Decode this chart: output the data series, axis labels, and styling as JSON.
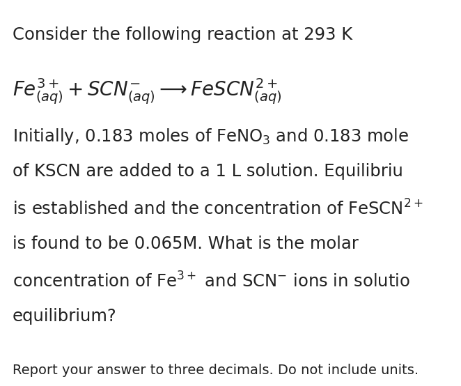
{
  "bg_color": "#ffffff",
  "title_line": "Consider the following reaction at 293 K",
  "reaction_latex": "$Fe^{3+}_{(aq)} + SCN^{-}_{(aq)} \\longrightarrow FeSCN^{2+}_{(aq)}$",
  "body_lines": [
    "Initially, 0.183 moles of FeNO$_3$ and 0.183 mole",
    "of KSCN are added to a 1 L solution. Equilibriu",
    "is established and the concentration of FeSCN$^{2+}$",
    "is found to be 0.065M. What is the molar",
    "concentration of Fe$^{3+}$ and SCN$^{-}$ ions in solutio",
    "equilibrium?"
  ],
  "footer_line": "Report your answer to three decimals. Do not include units.",
  "title_fontsize": 17.5,
  "reaction_fontsize": 20,
  "body_fontsize": 17.5,
  "footer_fontsize": 14,
  "text_color": "#222222",
  "fig_width": 6.62,
  "fig_height": 5.54,
  "dpi": 100
}
